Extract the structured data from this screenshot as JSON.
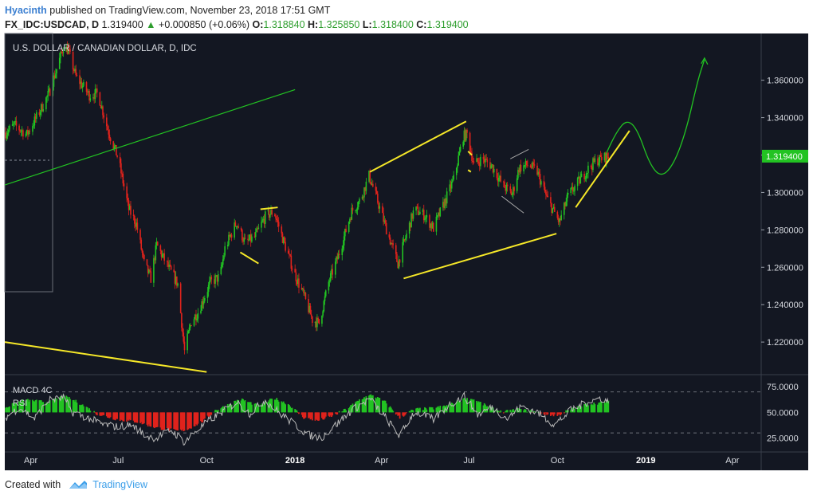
{
  "header": {
    "author": "Hyacinth",
    "published_text": "published on TradingView.com, November 23, 2018 17:51 GMT",
    "symbol": "FX_IDC:USDCAD, D",
    "price": "1.319400",
    "change": "+0.000850 (+0.06%)",
    "open_label": "O:",
    "open": "1.318840",
    "high_label": "H:",
    "high": "1.325850",
    "low_label": "L:",
    "low": "1.318400",
    "close_label": "C:",
    "close": "1.319400"
  },
  "footer": {
    "created_with": "Created with",
    "brand": "TradingView"
  },
  "colors": {
    "up": "#22c322",
    "down": "#e0231c",
    "background": "#131722",
    "trendline": "#f5e728",
    "projection": "#22c322",
    "rsi": "#b8b8b8",
    "price_tag": "#22c322"
  },
  "chart_data": {
    "type": "candlestick",
    "title": "U.S. DOLLAR / CANADIAN DOLLAR, D, IDC",
    "price_axis": {
      "ticks": [
        "1.360000",
        "1.340000",
        "1.320000",
        "1.300000",
        "1.280000",
        "1.260000",
        "1.240000",
        "1.220000"
      ],
      "tick_values": [
        1.36,
        1.34,
        1.32,
        1.3,
        1.28,
        1.26,
        1.24,
        1.22
      ],
      "range": [
        1.203,
        1.385
      ],
      "current": "1.319400",
      "current_value": 1.3194
    },
    "time_axis": {
      "labels": [
        "Apr",
        "Jul",
        "Oct",
        "2018",
        "Apr",
        "Jul",
        "Oct",
        "2019",
        "Apr"
      ],
      "dates": [
        "2017-04-01",
        "2017-07-01",
        "2017-10-01",
        "2018-01-01",
        "2018-04-01",
        "2018-07-01",
        "2018-10-01",
        "2019-01-01",
        "2019-04-01"
      ],
      "range": [
        "2017-03-05",
        "2019-05-01"
      ]
    },
    "price_path": [
      [
        "2017-03-06",
        1.332
      ],
      [
        "2017-03-15",
        1.336
      ],
      [
        "2017-03-28",
        1.331
      ],
      [
        "2017-04-10",
        1.343
      ],
      [
        "2017-04-20",
        1.353
      ],
      [
        "2017-04-28",
        1.366
      ],
      [
        "2017-05-05",
        1.378
      ],
      [
        "2017-05-10",
        1.376
      ],
      [
        "2017-05-18",
        1.362
      ],
      [
        "2017-06-01",
        1.352
      ],
      [
        "2017-06-10",
        1.353
      ],
      [
        "2017-06-20",
        1.334
      ],
      [
        "2017-07-01",
        1.318
      ],
      [
        "2017-07-12",
        1.291
      ],
      [
        "2017-07-20",
        1.283
      ],
      [
        "2017-07-28",
        1.262
      ],
      [
        "2017-08-04",
        1.254
      ],
      [
        "2017-08-10",
        1.272
      ],
      [
        "2017-08-20",
        1.262
      ],
      [
        "2017-09-01",
        1.251
      ],
      [
        "2017-09-08",
        1.215
      ],
      [
        "2017-09-15",
        1.231
      ],
      [
        "2017-09-22",
        1.236
      ],
      [
        "2017-10-05",
        1.252
      ],
      [
        "2017-10-15",
        1.255
      ],
      [
        "2017-10-20",
        1.27
      ],
      [
        "2017-11-01",
        1.284
      ],
      [
        "2017-11-10",
        1.273
      ],
      [
        "2017-11-20",
        1.276
      ],
      [
        "2017-12-01",
        1.287
      ],
      [
        "2017-12-10",
        1.29
      ],
      [
        "2017-12-20",
        1.274
      ],
      [
        "2018-01-01",
        1.256
      ],
      [
        "2018-01-10",
        1.245
      ],
      [
        "2018-01-19",
        1.232
      ],
      [
        "2018-01-26",
        1.23
      ],
      [
        "2018-02-05",
        1.252
      ],
      [
        "2018-02-15",
        1.266
      ],
      [
        "2018-03-01",
        1.29
      ],
      [
        "2018-03-10",
        1.296
      ],
      [
        "2018-03-19",
        1.309
      ],
      [
        "2018-03-25",
        1.3
      ],
      [
        "2018-04-05",
        1.282
      ],
      [
        "2018-04-18",
        1.262
      ],
      [
        "2018-04-25",
        1.274
      ],
      [
        "2018-05-05",
        1.291
      ],
      [
        "2018-05-15",
        1.288
      ],
      [
        "2018-05-25",
        1.281
      ],
      [
        "2018-06-05",
        1.294
      ],
      [
        "2018-06-15",
        1.307
      ],
      [
        "2018-06-25",
        1.33
      ],
      [
        "2018-06-29",
        1.331
      ],
      [
        "2018-07-06",
        1.315
      ],
      [
        "2018-07-15",
        1.318
      ],
      [
        "2018-07-25",
        1.314
      ],
      [
        "2018-08-05",
        1.304
      ],
      [
        "2018-08-15",
        1.299
      ],
      [
        "2018-08-22",
        1.313
      ],
      [
        "2018-09-01",
        1.315
      ],
      [
        "2018-09-10",
        1.311
      ],
      [
        "2018-09-20",
        1.297
      ],
      [
        "2018-09-28",
        1.289
      ],
      [
        "2018-10-03",
        1.284
      ],
      [
        "2018-10-12",
        1.298
      ],
      [
        "2018-10-22",
        1.305
      ],
      [
        "2018-11-01",
        1.312
      ],
      [
        "2018-11-10",
        1.317
      ],
      [
        "2018-11-23",
        1.3194
      ]
    ],
    "trendlines": [
      {
        "color": "green",
        "from": [
          "2017-03-05",
          1.304
        ],
        "to": [
          "2018-01-01",
          1.355
        ]
      },
      {
        "color": "yellow",
        "from": [
          "2017-03-05",
          1.22
        ],
        "to": [
          "2017-10-01",
          1.204
        ]
      },
      {
        "color": "yellow",
        "from": [
          "2017-11-05",
          1.268
        ],
        "to": [
          "2017-11-24",
          1.262
        ]
      },
      {
        "color": "yellow",
        "from": [
          "2017-11-26",
          1.291
        ],
        "to": [
          "2017-12-14",
          1.292
        ]
      },
      {
        "color": "yellow",
        "from": [
          "2018-03-20",
          1.311
        ],
        "to": [
          "2018-06-28",
          1.338
        ]
      },
      {
        "color": "yellow",
        "from": [
          "2018-04-24",
          1.254
        ],
        "to": [
          "2018-09-30",
          1.278
        ]
      },
      {
        "color": "yellow",
        "from": [
          "2018-10-20",
          1.292
        ],
        "to": [
          "2018-12-15",
          1.333
        ]
      },
      {
        "color": "yellow",
        "from": [
          "2018-06-30",
          1.322
        ],
        "to": [
          "2018-07-04",
          1.32
        ]
      },
      {
        "color": "yellow",
        "from": [
          "2018-06-30",
          1.312
        ],
        "to": [
          "2018-07-03",
          1.311
        ]
      }
    ],
    "gray_lines": [
      {
        "from": [
          "2018-08-04",
          1.298
        ],
        "to": [
          "2018-08-27",
          1.289
        ]
      },
      {
        "from": [
          "2018-08-13",
          1.318
        ],
        "to": [
          "2018-09-01",
          1.323
        ]
      }
    ],
    "projection": [
      [
        "2018-11-20",
        1.32
      ],
      [
        "2018-12-01",
        1.332
      ],
      [
        "2018-12-12",
        1.339
      ],
      [
        "2018-12-23",
        1.334
      ],
      [
        "2019-01-05",
        1.315
      ],
      [
        "2019-01-17",
        1.308
      ],
      [
        "2019-01-30",
        1.315
      ],
      [
        "2019-02-12",
        1.333
      ],
      [
        "2019-02-24",
        1.36
      ],
      [
        "2019-03-03",
        1.371
      ]
    ],
    "indicator": {
      "label": "MACD 4C",
      "label2": "RSI",
      "ticks": [
        "75.0000",
        "50.0000",
        "25.0000"
      ],
      "tick_values": [
        75,
        50,
        25
      ],
      "range": [
        13,
        86
      ],
      "levels": [
        70,
        30
      ],
      "macd_path": [
        [
          "2017-03-06",
          55
        ],
        [
          "2017-03-25",
          62
        ],
        [
          "2017-04-20",
          60
        ],
        [
          "2017-05-05",
          66
        ],
        [
          "2017-05-20",
          60
        ],
        [
          "2017-06-10",
          48
        ],
        [
          "2017-07-01",
          43
        ],
        [
          "2017-07-20",
          41
        ],
        [
          "2017-08-10",
          35
        ],
        [
          "2017-09-01",
          32
        ],
        [
          "2017-09-10",
          33
        ],
        [
          "2017-09-28",
          42
        ],
        [
          "2017-10-10",
          52
        ],
        [
          "2017-10-25",
          58
        ],
        [
          "2017-11-05",
          63
        ],
        [
          "2017-11-25",
          56
        ],
        [
          "2017-12-10",
          64
        ],
        [
          "2017-12-25",
          58
        ],
        [
          "2018-01-10",
          45
        ],
        [
          "2018-01-25",
          42
        ],
        [
          "2018-02-10",
          47
        ],
        [
          "2018-02-25",
          54
        ],
        [
          "2018-03-10",
          63
        ],
        [
          "2018-03-22",
          67
        ],
        [
          "2018-04-05",
          60
        ],
        [
          "2018-04-20",
          45
        ],
        [
          "2018-05-05",
          53
        ],
        [
          "2018-05-25",
          54
        ],
        [
          "2018-06-10",
          57
        ],
        [
          "2018-06-25",
          63
        ],
        [
          "2018-07-05",
          63
        ],
        [
          "2018-07-20",
          56
        ],
        [
          "2018-08-05",
          50
        ],
        [
          "2018-08-20",
          53
        ],
        [
          "2018-09-05",
          51
        ],
        [
          "2018-09-20",
          48
        ],
        [
          "2018-10-01",
          47
        ],
        [
          "2018-10-15",
          53
        ],
        [
          "2018-11-01",
          58
        ],
        [
          "2018-11-23",
          60
        ]
      ],
      "rsi_path": [
        [
          "2017-03-06",
          45
        ],
        [
          "2017-03-20",
          55
        ],
        [
          "2017-04-05",
          44
        ],
        [
          "2017-04-20",
          62
        ],
        [
          "2017-05-05",
          64
        ],
        [
          "2017-05-15",
          50
        ],
        [
          "2017-06-01",
          44
        ],
        [
          "2017-06-15",
          38
        ],
        [
          "2017-07-01",
          36
        ],
        [
          "2017-07-15",
          38
        ],
        [
          "2017-07-30",
          27
        ],
        [
          "2017-08-10",
          25
        ],
        [
          "2017-08-25",
          33
        ],
        [
          "2017-09-08",
          21
        ],
        [
          "2017-09-20",
          32
        ],
        [
          "2017-10-05",
          43
        ],
        [
          "2017-10-20",
          52
        ],
        [
          "2017-11-01",
          60
        ],
        [
          "2017-11-15",
          49
        ],
        [
          "2017-12-01",
          62
        ],
        [
          "2017-12-15",
          50
        ],
        [
          "2018-01-01",
          38
        ],
        [
          "2018-01-15",
          28
        ],
        [
          "2018-01-28",
          25
        ],
        [
          "2018-02-15",
          40
        ],
        [
          "2018-03-01",
          52
        ],
        [
          "2018-03-20",
          63
        ],
        [
          "2018-04-05",
          45
        ],
        [
          "2018-04-20",
          27
        ],
        [
          "2018-05-05",
          51
        ],
        [
          "2018-05-25",
          43
        ],
        [
          "2018-06-10",
          57
        ],
        [
          "2018-06-26",
          66
        ],
        [
          "2018-07-10",
          48
        ],
        [
          "2018-07-25",
          55
        ],
        [
          "2018-08-10",
          44
        ],
        [
          "2018-08-25",
          56
        ],
        [
          "2018-09-10",
          50
        ],
        [
          "2018-09-28",
          38
        ],
        [
          "2018-10-15",
          52
        ],
        [
          "2018-11-01",
          60
        ],
        [
          "2018-11-15",
          64
        ],
        [
          "2018-11-23",
          60
        ]
      ]
    }
  }
}
